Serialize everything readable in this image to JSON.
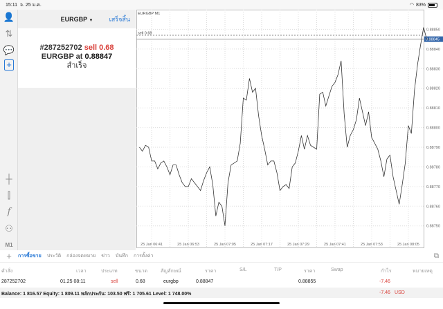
{
  "status_bar": {
    "time": "15:11",
    "date": "จ. 25 ม.ค.",
    "battery": "83%",
    "battery_level": 0.83
  },
  "sidebar": {
    "icons": [
      "account-icon",
      "trade-icon",
      "chat-icon",
      "new-order-icon",
      "crosshair-icon",
      "candles-icon",
      "indicator-icon",
      "objects-icon"
    ],
    "timeframe": "M1"
  },
  "order_panel": {
    "symbol": "EURGBP",
    "done_label": "เสร็จสิ้น",
    "order_no": "#287252702",
    "side_text": "sell 0.68",
    "line2_prefix": "EURGBP at",
    "price": "0.88847",
    "result": "สำเร็จ"
  },
  "chart_data": {
    "type": "line",
    "title": "EURGBP M1",
    "x_start": "06:37",
    "x_step_minutes": 1,
    "values": [
      0.8879,
      0.88788,
      0.88791,
      0.8879,
      0.88783,
      0.88783,
      0.88779,
      0.88782,
      0.88783,
      0.8878,
      0.88776,
      0.88781,
      0.88781,
      0.88776,
      0.88772,
      0.8877,
      0.8877,
      0.88774,
      0.88772,
      0.8877,
      0.88768,
      0.88773,
      0.88777,
      0.8878,
      0.88771,
      0.88755,
      0.88762,
      0.8876,
      0.8875,
      0.88772,
      0.88781,
      0.88782,
      0.88783,
      0.88792,
      0.88815,
      0.88814,
      0.88825,
      0.88818,
      0.8882,
      0.88806,
      0.88796,
      0.88789,
      0.88781,
      0.88783,
      0.88783,
      0.88777,
      0.88768,
      0.8877,
      0.88771,
      0.88769,
      0.8878,
      0.88782,
      0.88788,
      0.88796,
      0.88789,
      0.88796,
      0.88791,
      0.8879,
      0.88789,
      0.88817,
      0.88818,
      0.88811,
      0.88816,
      0.88821,
      0.88823,
      0.88827,
      0.88834,
      0.88807,
      0.8879,
      0.88796,
      0.88799,
      0.88804,
      0.88815,
      0.88808,
      0.88801,
      0.88808,
      0.88795,
      0.88792,
      0.88789,
      0.88783,
      0.88775,
      0.88784,
      0.88786,
      0.88775,
      0.88768,
      0.88761,
      0.88771,
      0.88782,
      0.88801,
      0.88797,
      0.88819,
      0.88832,
      0.88842,
      0.88851,
      0.88845,
      0.88845
    ],
    "x_ticks": [
      "25 Jan 06:41",
      "25 Jan 06:53",
      "25 Jan 07:05",
      "25 Jan 07:17",
      "25 Jan 07:29",
      "25 Jan 07:41",
      "25 Jan 07:53",
      "25 Jan 08:05"
    ],
    "x_tick_minutes": [
      "06:41",
      "06:53",
      "07:05",
      "07:17",
      "07:29",
      "07:41",
      "07:53",
      "08:05"
    ],
    "y_ticks": [
      "0.88850",
      "0.88840",
      "0.88830",
      "0.88820",
      "0.88810",
      "0.88800",
      "0.88790",
      "0.88780",
      "0.88770",
      "0.88760",
      "0.88750"
    ],
    "ylim": [
      0.88739,
      0.8886
    ],
    "xlim": [
      "06:36",
      "08:10"
    ],
    "grid": true,
    "order_line": {
      "label": "sell 0.68",
      "price": 0.88847
    },
    "current_price": {
      "label": "0.88845",
      "price": 0.88845
    },
    "colors": {
      "line": "#333333",
      "current": "#3366aa",
      "grid": "#dddddd"
    }
  },
  "bottom_tabs": {
    "items": [
      "การซื้อขาย",
      "ประวัติ",
      "กล่องจดหมาย",
      "ข่าว",
      "บันทึก",
      "การตั้งค่า"
    ],
    "active": 0
  },
  "table": {
    "headers": [
      "คำสั่ง",
      "เวลา",
      "ประเภท",
      "ขนาด",
      "สัญลักษณ์",
      "ราคา",
      "S/L",
      "T/P",
      "ราคา",
      "Swap",
      "กำไร",
      "หมายเหตุ"
    ],
    "rows": [
      [
        "287252702",
        "01.25 08:11",
        "sell",
        "0.68",
        "eurgbp",
        "0.88847",
        "",
        "",
        "0.88855",
        "",
        "-7.46",
        ""
      ]
    ]
  },
  "balance": {
    "text": "Balance: 1 816.57 Equity: 1 809.11 หลักประกัน: 103.50 ฟรี: 1 705.61 Level: 1 748.00%",
    "profit": "-7.46",
    "currency": "USD"
  }
}
